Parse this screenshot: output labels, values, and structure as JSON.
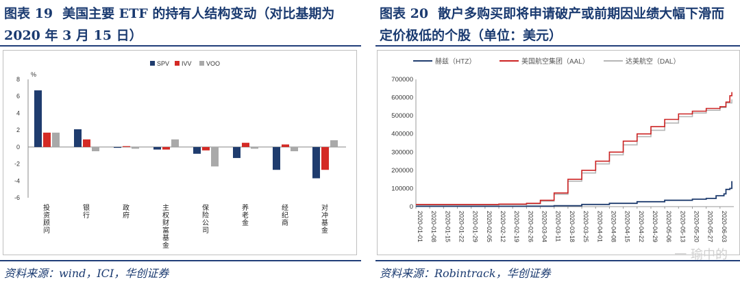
{
  "left": {
    "fig_label": "图表 19",
    "title": "美国主要 ETF 的持有人结构变动（对比基期为 2020 年 3 月 15 日）",
    "source": "资料来源：wind，ICI，华创证券"
  },
  "right": {
    "fig_label": "图表 20",
    "title": "散户多购买即将申请破产或前期因业绩大幅下滑而定价极低的个股（单位：美元）",
    "source": "资料来源：Robintrack，华创证券"
  },
  "watermark": "一 瑜中的",
  "colors": {
    "spv": "#1f3c6e",
    "ivv": "#d42a25",
    "voo": "#a9a9a9",
    "htz": "#1f3c6e",
    "aal": "#cc2222",
    "dal": "#b5b5b5",
    "title": "#1a3a70"
  },
  "chart_data": [
    {
      "type": "bar",
      "ylabel": "%",
      "ylim": [
        -6,
        8
      ],
      "yticks": [
        -6,
        -4,
        -2,
        0,
        2,
        4,
        6,
        8
      ],
      "legend_position": "top",
      "categories": [
        "投资顾问",
        "银行",
        "政府",
        "主权财富基金",
        "保险公司",
        "养老金",
        "经纪商",
        "对冲基金"
      ],
      "series": [
        {
          "name": "SPV",
          "values": [
            6.7,
            2.1,
            -0.1,
            -0.3,
            -0.8,
            -1.3,
            -2.7,
            -3.7
          ]
        },
        {
          "name": "IVV",
          "values": [
            1.7,
            0.9,
            0.1,
            -0.3,
            -0.4,
            0.5,
            0.3,
            -2.7
          ]
        },
        {
          "name": "VOO",
          "values": [
            1.7,
            -0.5,
            -0.2,
            0.9,
            -2.3,
            -0.2,
            -0.5,
            0.8
          ]
        }
      ]
    },
    {
      "type": "line",
      "ylim": [
        0,
        700000
      ],
      "yticks": [
        0,
        100000,
        200000,
        300000,
        400000,
        500000,
        600000,
        700000
      ],
      "legend_position": "top",
      "x_labels": [
        "2020-01-01",
        "2020-01-08",
        "2020-01-15",
        "2020-01-22",
        "2020-01-29",
        "2020-02-05",
        "2020-02-12",
        "2020-02-19",
        "2020-02-26",
        "2020-03-04",
        "2020-03-11",
        "2020-03-18",
        "2020-03-25",
        "2020-04-01",
        "2020-04-08",
        "2020-04-15",
        "2020-04-22",
        "2020-04-29",
        "2020-05-06",
        "2020-05-13",
        "2020-05-20",
        "2020-05-27",
        "2020-06-03"
      ],
      "x_domain": [
        "2020-01-01",
        "2020-06-10"
      ],
      "series": [
        {
          "name": "赫兹（HTZ）",
          "points": [
            [
              "2020-01-01",
              2000
            ],
            [
              "2020-02-26",
              2500
            ],
            [
              "2020-03-11",
              5000
            ],
            [
              "2020-03-25",
              12000
            ],
            [
              "2020-04-08",
              18000
            ],
            [
              "2020-04-22",
              27000
            ],
            [
              "2020-05-06",
              35000
            ],
            [
              "2020-05-20",
              41000
            ],
            [
              "2020-05-27",
              45000
            ],
            [
              "2020-06-01",
              60000
            ],
            [
              "2020-06-05",
              70000
            ],
            [
              "2020-06-06",
              95000
            ],
            [
              "2020-06-08",
              100000
            ],
            [
              "2020-06-09",
              140000
            ]
          ]
        },
        {
          "name": "美国航空集团（AAL）",
          "points": [
            [
              "2020-01-01",
              12000
            ],
            [
              "2020-02-12",
              14000
            ],
            [
              "2020-02-26",
              18000
            ],
            [
              "2020-03-04",
              35000
            ],
            [
              "2020-03-11",
              75000
            ],
            [
              "2020-03-18",
              150000
            ],
            [
              "2020-03-25",
              200000
            ],
            [
              "2020-04-01",
              250000
            ],
            [
              "2020-04-08",
              300000
            ],
            [
              "2020-04-15",
              360000
            ],
            [
              "2020-04-22",
              400000
            ],
            [
              "2020-04-29",
              440000
            ],
            [
              "2020-05-06",
              480000
            ],
            [
              "2020-05-13",
              510000
            ],
            [
              "2020-05-20",
              525000
            ],
            [
              "2020-05-27",
              540000
            ],
            [
              "2020-06-03",
              550000
            ],
            [
              "2020-06-06",
              575000
            ],
            [
              "2020-06-08",
              610000
            ],
            [
              "2020-06-09",
              630000
            ]
          ]
        },
        {
          "name": "达美航空（DAL）",
          "points": [
            [
              "2020-01-01",
              9000
            ],
            [
              "2020-02-12",
              11000
            ],
            [
              "2020-02-26",
              15000
            ],
            [
              "2020-03-04",
              30000
            ],
            [
              "2020-03-11",
              68000
            ],
            [
              "2020-03-18",
              140000
            ],
            [
              "2020-03-25",
              185000
            ],
            [
              "2020-04-01",
              235000
            ],
            [
              "2020-04-08",
              285000
            ],
            [
              "2020-04-15",
              340000
            ],
            [
              "2020-04-22",
              385000
            ],
            [
              "2020-04-29",
              420000
            ],
            [
              "2020-05-06",
              460000
            ],
            [
              "2020-05-13",
              495000
            ],
            [
              "2020-05-20",
              515000
            ],
            [
              "2020-05-27",
              530000
            ],
            [
              "2020-06-03",
              545000
            ],
            [
              "2020-06-06",
              570000
            ],
            [
              "2020-06-09",
              590000
            ]
          ]
        }
      ]
    }
  ]
}
